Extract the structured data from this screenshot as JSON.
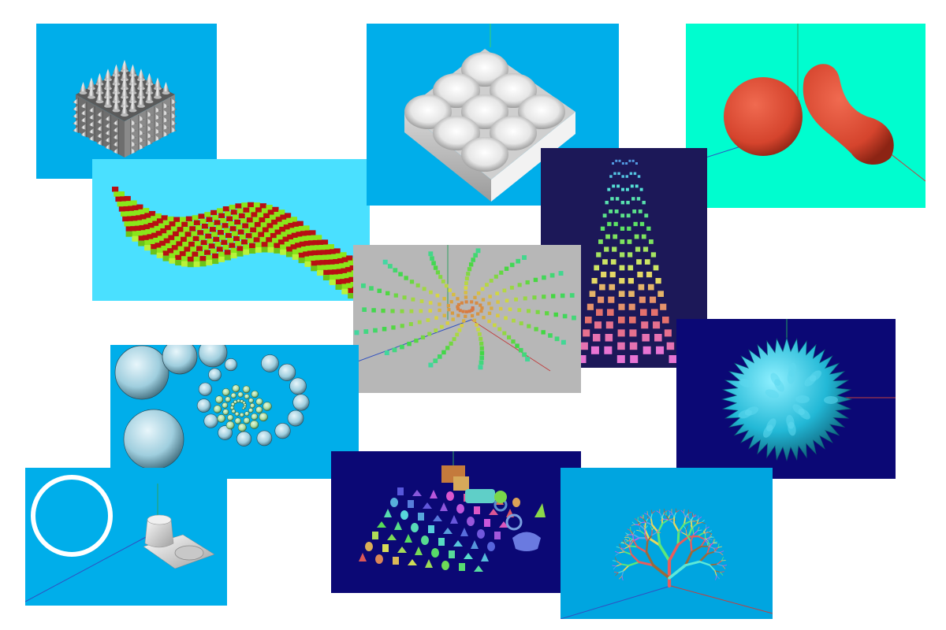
{
  "tiles": [
    {
      "id": "cube-of-cones",
      "background": "#00aeea"
    },
    {
      "id": "checkered-wave-strip",
      "background": "#4ae0ff"
    },
    {
      "id": "dimpled-tray",
      "background": "#00aeea"
    },
    {
      "id": "red-metaball-blobs",
      "background": "#00fdcf"
    },
    {
      "id": "zigzag-block-columns",
      "background": "#1c1858"
    },
    {
      "id": "spiral-cube-field",
      "background": "#b7b7b7"
    },
    {
      "id": "spiral-shell-chain",
      "background": "#00aeea"
    },
    {
      "id": "spiky-sphere",
      "background": "#0b0875"
    },
    {
      "id": "ring-and-extruded-shape",
      "background": "#00aeea"
    },
    {
      "id": "primitive-shapes-grid",
      "background": "#0b0875"
    },
    {
      "id": "branching-tree",
      "background": "#00a5e0"
    }
  ],
  "colors": {
    "wave_red": "#b80f13",
    "wave_green": "#8ae61a",
    "blob_red": "#d5442d",
    "spiky_cyan": "#22b8d6"
  }
}
